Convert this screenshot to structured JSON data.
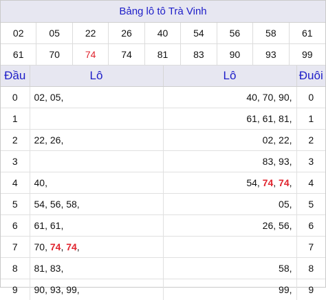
{
  "title": "Bảng lô tô Trà Vinh",
  "numbers": [
    "02",
    "05",
    "22",
    "26",
    "40",
    "54",
    "56",
    "58",
    "61",
    "61",
    "70",
    "74",
    "74",
    "81",
    "83",
    "90",
    "93",
    "99"
  ],
  "highlight": "74",
  "colors": {
    "accent_blue": "#1d1dc8",
    "highlight_red": "#e0242e",
    "header_bg": "#e7e7f1"
  },
  "table": {
    "headers": {
      "dau": "Đầu",
      "lo1": "Lô",
      "lo2": "Lô",
      "duoi": "Đuôi"
    },
    "rows": [
      {
        "dau": "0",
        "lo1": [
          "02",
          "05"
        ],
        "lo2": [
          "40",
          "70",
          "90"
        ],
        "duoi": "0"
      },
      {
        "dau": "1",
        "lo1": [],
        "lo2": [
          "61",
          "61",
          "81"
        ],
        "duoi": "1"
      },
      {
        "dau": "2",
        "lo1": [
          "22",
          "26"
        ],
        "lo2": [
          "02",
          "22"
        ],
        "duoi": "2"
      },
      {
        "dau": "3",
        "lo1": [],
        "lo2": [
          "83",
          "93"
        ],
        "duoi": "3"
      },
      {
        "dau": "4",
        "lo1": [
          "40"
        ],
        "lo2": [
          "54",
          "74",
          "74"
        ],
        "duoi": "4"
      },
      {
        "dau": "5",
        "lo1": [
          "54",
          "56",
          "58"
        ],
        "lo2": [
          "05"
        ],
        "duoi": "5"
      },
      {
        "dau": "6",
        "lo1": [
          "61",
          "61"
        ],
        "lo2": [
          "26",
          "56"
        ],
        "duoi": "6"
      },
      {
        "dau": "7",
        "lo1": [
          "70",
          "74",
          "74"
        ],
        "lo2": [],
        "duoi": "7"
      },
      {
        "dau": "8",
        "lo1": [
          "81",
          "83"
        ],
        "lo2": [
          "58"
        ],
        "duoi": "8"
      },
      {
        "dau": "9",
        "lo1": [
          "90",
          "93",
          "99"
        ],
        "lo2": [
          "99"
        ],
        "duoi": "9"
      }
    ]
  }
}
